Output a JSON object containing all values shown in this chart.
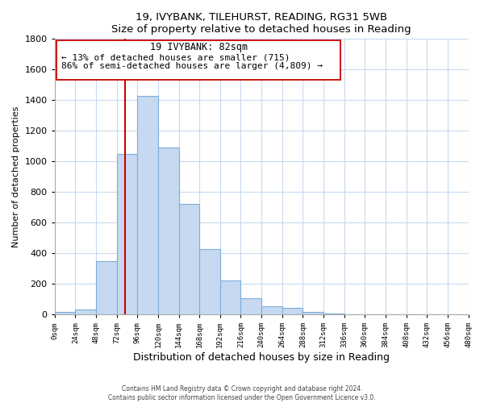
{
  "title": "19, IVYBANK, TILEHURST, READING, RG31 5WB",
  "subtitle": "Size of property relative to detached houses in Reading",
  "xlabel": "Distribution of detached houses by size in Reading",
  "ylabel": "Number of detached properties",
  "bin_edges": [
    0,
    24,
    48,
    72,
    96,
    120,
    144,
    168,
    192,
    216,
    240,
    264,
    288,
    312,
    336,
    360,
    384,
    408,
    432,
    456,
    480
  ],
  "bar_heights": [
    15,
    30,
    350,
    1050,
    1430,
    1090,
    720,
    430,
    220,
    105,
    55,
    45,
    18,
    5,
    2,
    1,
    0,
    0,
    0,
    0
  ],
  "bar_color": "#c6d9f0",
  "bar_edgecolor": "#7dadd9",
  "grid_color": "#c8daf0",
  "property_line_x": 82,
  "property_line_color": "#cc0000",
  "annotation_title": "19 IVYBANK: 82sqm",
  "annotation_line1": "← 13% of detached houses are smaller (715)",
  "annotation_line2": "86% of semi-detached houses are larger (4,809) →",
  "annotation_box_color": "#ffffff",
  "annotation_box_edgecolor": "#cc0000",
  "ylim": [
    0,
    1800
  ],
  "xlim": [
    0,
    480
  ],
  "yticks": [
    0,
    200,
    400,
    600,
    800,
    1000,
    1200,
    1400,
    1600,
    1800
  ],
  "footer1": "Contains HM Land Registry data © Crown copyright and database right 2024.",
  "footer2": "Contains public sector information licensed under the Open Government Licence v3.0.",
  "tick_labels": [
    "0sqm",
    "24sqm",
    "48sqm",
    "72sqm",
    "96sqm",
    "120sqm",
    "144sqm",
    "168sqm",
    "192sqm",
    "216sqm",
    "240sqm",
    "264sqm",
    "288sqm",
    "312sqm",
    "336sqm",
    "360sqm",
    "384sqm",
    "408sqm",
    "432sqm",
    "456sqm",
    "480sqm"
  ]
}
